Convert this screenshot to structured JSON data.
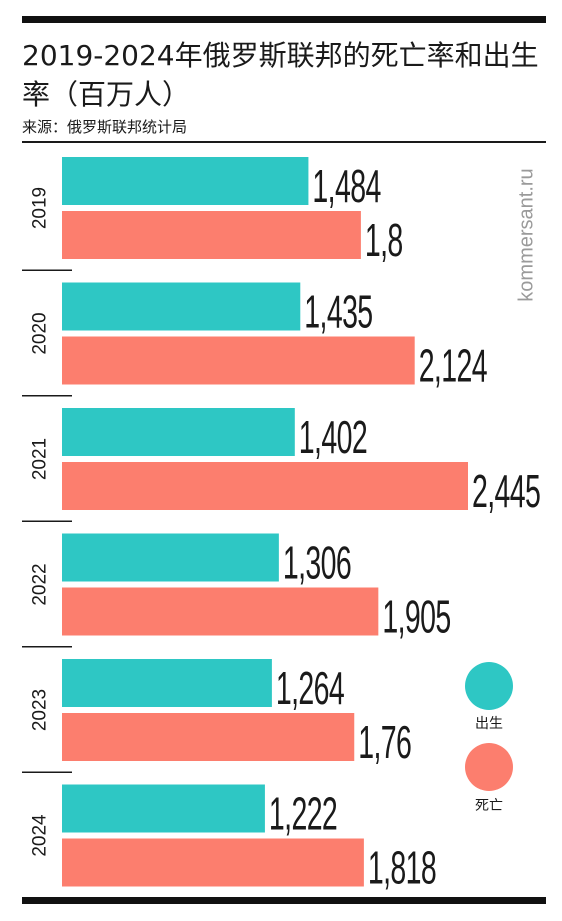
{
  "title": "2019-2024年俄罗斯联邦的死亡率和出生率（百万人）",
  "source": "来源：俄罗斯联邦统计局",
  "watermark": "kommersant.ru",
  "colors": {
    "births": "#2ec7c4",
    "deaths": "#fc7e6e"
  },
  "legend": {
    "births_label": "出生",
    "deaths_label": "死亡"
  },
  "chart_data": {
    "type": "bar",
    "orientation": "horizontal",
    "title": "2019-2024年俄罗斯联邦的死亡率和出生率（百万人）",
    "categories": [
      "2019",
      "2020",
      "2021",
      "2022",
      "2023",
      "2024"
    ],
    "series": [
      {
        "name": "出生",
        "values": [
          1.484,
          1.435,
          1.402,
          1.306,
          1.264,
          1.222
        ],
        "labels": [
          "1,484",
          "1,435",
          "1,402",
          "1,306",
          "1,264",
          "1,222"
        ]
      },
      {
        "name": "死亡",
        "values": [
          1.8,
          2.124,
          2.445,
          1.905,
          1.76,
          1.818
        ],
        "labels": [
          "1,8",
          "2,124",
          "2,445",
          "1,905",
          "1,76",
          "1,818"
        ]
      }
    ],
    "xlim": [
      0,
      2.445
    ],
    "grid": false,
    "legend_position": "bottom-right"
  }
}
